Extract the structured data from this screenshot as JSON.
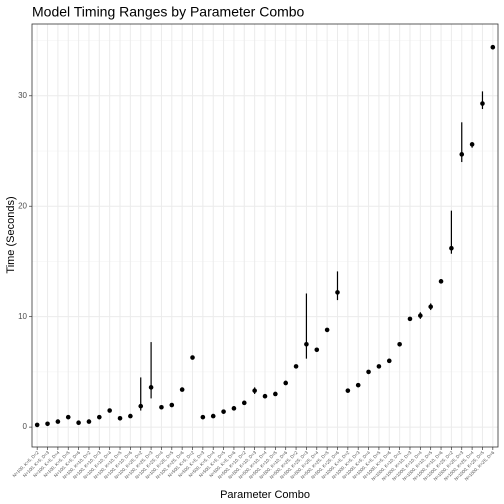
{
  "chart_data": {
    "type": "pointrange",
    "title": "Model Timing Ranges by Parameter Combo",
    "x_label": "Parameter Combo",
    "y_label": "Time (Seconds)",
    "categories": [
      "N=100, K=5, D=2",
      "N=100, K=5, D=3",
      "N=100, K=5, D=4",
      "N=100, K=5, D=5",
      "N=100, K=5, D=6",
      "N=100, K=10, D=2",
      "N=100, K=10, D=3",
      "N=100, K=10, D=4",
      "N=100, K=10, D=5",
      "N=100, K=10, D=6",
      "N=100, K=25, D=2",
      "N=100, K=25, D=3",
      "N=100, K=25, D=4",
      "N=100, K=25, D=5",
      "N=100, K=25, D=6",
      "N=500, K=5, D=2",
      "N=500, K=5, D=3",
      "N=500, K=5, D=4",
      "N=500, K=5, D=5",
      "N=500, K=5, D=6",
      "N=500, K=10, D=2",
      "N=500, K=10, D=3",
      "N=500, K=10, D=4",
      "N=500, K=10, D=5",
      "N=500, K=10, D=6",
      "N=500, K=25, D=2",
      "N=500, K=25, D=3",
      "N=500, K=25, D=4",
      "N=500, K=25, D=5",
      "N=500, K=25, D=6",
      "N=1000, K=5, D=2",
      "N=1000, K=5, D=3",
      "N=1000, K=5, D=4",
      "N=1000, K=5, D=5",
      "N=1000, K=5, D=6",
      "N=1000, K=10, D=2",
      "N=1000, K=10, D=3",
      "N=1000, K=10, D=4",
      "N=1000, K=10, D=5",
      "N=1000, K=10, D=6",
      "N=1000, K=25, D=2",
      "N=1000, K=25, D=3",
      "N=1000, K=25, D=4",
      "N=1000, K=25, D=5",
      "N=1000, K=25, D=6"
    ],
    "values": [
      0.2,
      0.3,
      0.5,
      0.9,
      0.4,
      0.5,
      0.9,
      1.5,
      0.8,
      1.0,
      1.9,
      3.6,
      1.8,
      2.0,
      3.4,
      6.3,
      0.9,
      1.0,
      1.4,
      1.7,
      2.2,
      3.3,
      2.8,
      3.0,
      4.0,
      5.5,
      7.5,
      7.0,
      8.8,
      12.2,
      3.3,
      3.8,
      5.0,
      5.5,
      6.0,
      7.5,
      9.8,
      10.1,
      10.9,
      13.2,
      16.2,
      24.7,
      25.6,
      29.3,
      34.4
    ],
    "low": [
      0.1,
      0.2,
      0.4,
      0.8,
      0.3,
      0.4,
      0.8,
      1.4,
      0.7,
      0.9,
      1.5,
      2.6,
      1.7,
      1.9,
      3.3,
      6.2,
      0.8,
      0.9,
      1.3,
      1.6,
      2.1,
      3.0,
      2.7,
      2.9,
      3.8,
      5.4,
      6.2,
      6.9,
      8.7,
      11.5,
      3.2,
      3.7,
      4.9,
      5.4,
      5.9,
      7.4,
      9.7,
      9.8,
      10.6,
      13.1,
      15.7,
      24.0,
      25.3,
      28.8,
      34.2
    ],
    "high": [
      0.3,
      0.4,
      0.6,
      1.0,
      0.5,
      0.6,
      1.0,
      1.6,
      0.9,
      1.1,
      4.5,
      7.7,
      1.9,
      2.1,
      3.5,
      6.4,
      1.0,
      1.1,
      1.5,
      1.8,
      2.3,
      3.6,
      2.9,
      3.1,
      4.2,
      5.6,
      12.1,
      7.1,
      8.9,
      14.1,
      3.4,
      3.9,
      5.1,
      5.6,
      6.1,
      7.6,
      9.9,
      10.4,
      11.2,
      13.3,
      19.6,
      27.6,
      25.8,
      30.4,
      34.6
    ],
    "color": "#000000",
    "ylim": [
      -1.8,
      36.5
    ],
    "yticks": [
      0,
      10,
      20,
      30
    ],
    "y_minor_ticks": [
      5,
      15,
      25,
      35
    ],
    "grid": true
  }
}
